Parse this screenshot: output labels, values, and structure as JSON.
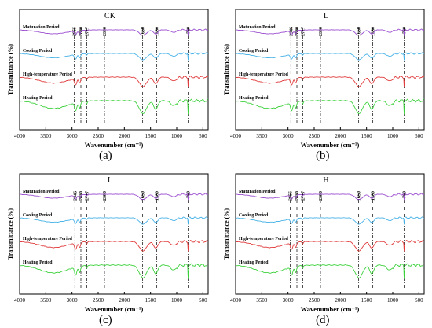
{
  "figure": {
    "captions": [
      "(a)",
      "(b)",
      "(c)",
      "(d)"
    ]
  },
  "chart_data": [
    {
      "type": "line",
      "title": "CK",
      "xlabel": "Wavenumber (cm⁻¹)",
      "ylabel": "Transmittance (%)",
      "x_ticks": [
        4000,
        3500,
        3000,
        2500,
        2000,
        1500,
        1000,
        500
      ],
      "xlim": [
        4000,
        400
      ],
      "x_reversed": true,
      "marker_lines": [
        2955,
        2830,
        2717,
        2380,
        1650,
        1380,
        780
      ],
      "series": [
        {
          "name": "Maturation Period",
          "color": "#9b4fd0"
        },
        {
          "name": "Cooling Period",
          "color": "#47b2e8"
        },
        {
          "name": "High-temperature Period",
          "color": "#e03a3a"
        },
        {
          "name": "Heating Period",
          "color": "#3bd13b"
        }
      ]
    },
    {
      "type": "line",
      "title": "L",
      "xlabel": "Wavenumber (cm⁻¹)",
      "ylabel": "Transmittance (%)",
      "x_ticks": [
        4000,
        3500,
        3000,
        2500,
        2000,
        1500,
        1000,
        500
      ],
      "xlim": [
        4000,
        400
      ],
      "x_reversed": true,
      "marker_lines": [
        2946,
        2830,
        2717,
        2380,
        1650,
        1380,
        780
      ],
      "series": [
        {
          "name": "Maturation Period",
          "color": "#9b4fd0"
        },
        {
          "name": "Cooling Period",
          "color": "#47b2e8"
        },
        {
          "name": "High-temperature Period",
          "color": "#e03a3a"
        },
        {
          "name": "Heating Period",
          "color": "#3bd13b"
        }
      ]
    },
    {
      "type": "line",
      "title": "L",
      "xlabel": "Wavenumber (cm⁻¹)",
      "ylabel": "Transmittance (%)",
      "x_ticks": [
        4000,
        3500,
        3000,
        2500,
        2000,
        1500,
        1000,
        500
      ],
      "xlim": [
        4000,
        400
      ],
      "x_reversed": true,
      "marker_lines": [
        2946,
        2830,
        2717,
        2380,
        1650,
        1380,
        780
      ],
      "series": [
        {
          "name": "Maturation Period",
          "color": "#9b4fd0"
        },
        {
          "name": "Cooling Period",
          "color": "#47b2e8"
        },
        {
          "name": "High-temperature Period",
          "color": "#e03a3a"
        },
        {
          "name": "Heating Period",
          "color": "#3bd13b"
        }
      ]
    },
    {
      "type": "line",
      "title": "H",
      "xlabel": "Wavenumber (cm⁻¹)",
      "ylabel": "Transmittance (%)",
      "x_ticks": [
        4000,
        3500,
        3000,
        2500,
        2000,
        1500,
        1000,
        500
      ],
      "xlim": [
        4000,
        400
      ],
      "x_reversed": true,
      "marker_lines": [
        2955,
        2830,
        2717,
        2380,
        1650,
        1380,
        780
      ],
      "series": [
        {
          "name": "Maturation Period",
          "color": "#9b4fd0"
        },
        {
          "name": "Cooling Period",
          "color": "#47b2e8"
        },
        {
          "name": "High-temperature Period",
          "color": "#e03a3a"
        },
        {
          "name": "Heating Period",
          "color": "#3bd13b"
        }
      ]
    }
  ]
}
